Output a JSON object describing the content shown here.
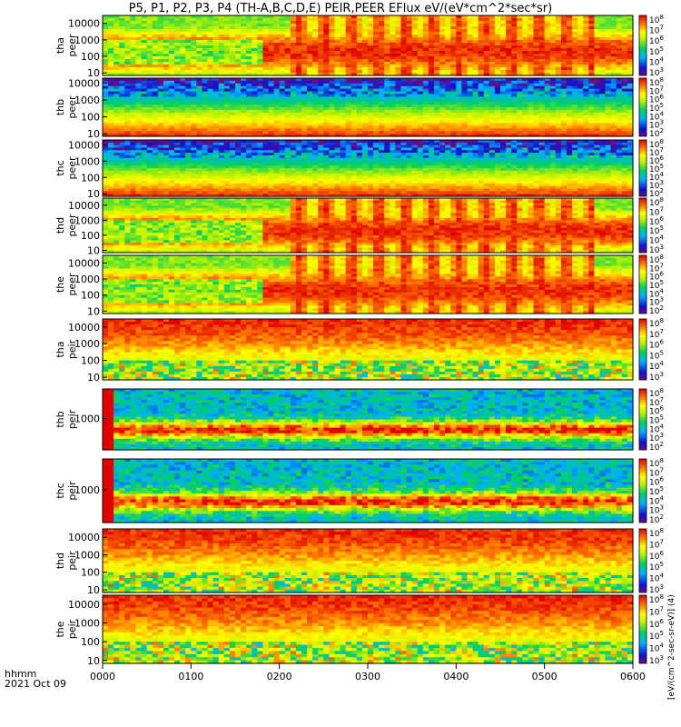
{
  "figure": {
    "title": "P5, P1, P2, P3, P4 (TH-A,B,C,D,E) PEIR,PEER EFlux eV/(eV*cm^2*sec*sr)",
    "time_label": "hhmm",
    "date_label": "2021 Oct 09",
    "colorbar_label": "[eV/(cm^2-sec-sr-eV)] (4)"
  },
  "chart_data": {
    "type": "heatmap",
    "title": "P5, P1, P2, P3, P4 (TH-A,B,C,D,E) PEIR,PEER EFlux eV/(eV*cm^2*sec*sr)",
    "x_axis": {
      "label": "hhmm",
      "range": [
        "0000",
        "0600"
      ],
      "ticks": [
        "0000",
        "0100",
        "0200",
        "0300",
        "0400",
        "0500",
        "0600"
      ]
    },
    "y_scale": "log",
    "colorbar": {
      "scale": "log",
      "colormap": "rainbow (purple-blue-cyan-green-yellow-red)"
    },
    "panels": [
      {
        "name": "tha peer",
        "line1": "tha",
        "line2": "peer",
        "yticks": [
          "10",
          "100",
          "1000",
          "10000"
        ],
        "ylim": [
          7,
          30000
        ],
        "cbticks": [
          "10^8",
          "10^7",
          "10^6",
          "10^5",
          "10^4",
          "10^3"
        ]
      },
      {
        "name": "thb peer",
        "line1": "thb",
        "line2": "peer",
        "yticks": [
          "10",
          "100",
          "1000",
          "10000"
        ],
        "ylim": [
          7,
          20000
        ],
        "cbticks": [
          "10^8",
          "10^7",
          "10^6",
          "10^5",
          "10^4",
          "10^3",
          "10^2"
        ]
      },
      {
        "name": "thc peer",
        "line1": "thc",
        "line2": "peer",
        "yticks": [
          "10",
          "100",
          "1000",
          "10000"
        ],
        "ylim": [
          7,
          20000
        ],
        "cbticks": [
          "10^8",
          "10^7",
          "10^6",
          "10^5",
          "10^4",
          "10^3",
          "10^2"
        ]
      },
      {
        "name": "thd peer",
        "line1": "thd",
        "line2": "peer",
        "yticks": [
          "10",
          "100",
          "1000",
          "10000"
        ],
        "ylim": [
          7,
          30000
        ],
        "cbticks": [
          "10^8",
          "10^7",
          "10^6",
          "10^5",
          "10^4",
          "10^3"
        ]
      },
      {
        "name": "the peer",
        "line1": "the",
        "line2": "peer",
        "yticks": [
          "10",
          "100",
          "1000",
          "10000"
        ],
        "ylim": [
          7,
          30000
        ],
        "cbticks": [
          "10^8",
          "10^7",
          "10^6",
          "10^5",
          "10^4",
          "10^3",
          "10^2"
        ]
      },
      {
        "name": "tha peir",
        "line1": "tha",
        "line2": "peir",
        "yticks": [
          "10",
          "100",
          "1000",
          "10000"
        ],
        "ylim": [
          7,
          30000
        ],
        "cbticks": [
          "10^8",
          "10^7",
          "10^6",
          "10^5",
          "10^4",
          "10^3"
        ]
      },
      {
        "name": "thb peir",
        "line1": "thb",
        "line2": "peir",
        "yticks": [
          "1000"
        ],
        "ylim": [
          150,
          6000
        ],
        "cbticks": [
          "10^8",
          "10^7",
          "10^6",
          "10^5",
          "10^4",
          "10^3",
          "10^2"
        ]
      },
      {
        "name": "thc peir",
        "line1": "thc",
        "line2": "peir",
        "yticks": [
          "1000"
        ],
        "ylim": [
          150,
          6000
        ],
        "cbticks": [
          "10^8",
          "10^7",
          "10^6",
          "10^5",
          "10^4",
          "10^3",
          "10^2"
        ]
      },
      {
        "name": "thd peir",
        "line1": "thd",
        "line2": "peir",
        "yticks": [
          "10",
          "100",
          "1000",
          "10000"
        ],
        "ylim": [
          7,
          30000
        ],
        "cbticks": [
          "10^8",
          "10^7",
          "10^6",
          "10^5",
          "10^4",
          "10^3"
        ]
      },
      {
        "name": "the peir",
        "line1": "the",
        "line2": "peir",
        "yticks": [
          "10",
          "100",
          "1000",
          "10000"
        ],
        "ylim": [
          7,
          30000
        ],
        "cbticks": [
          "10^8",
          "10^7",
          "10^6",
          "10^5",
          "10^4",
          "10^3"
        ]
      }
    ]
  }
}
